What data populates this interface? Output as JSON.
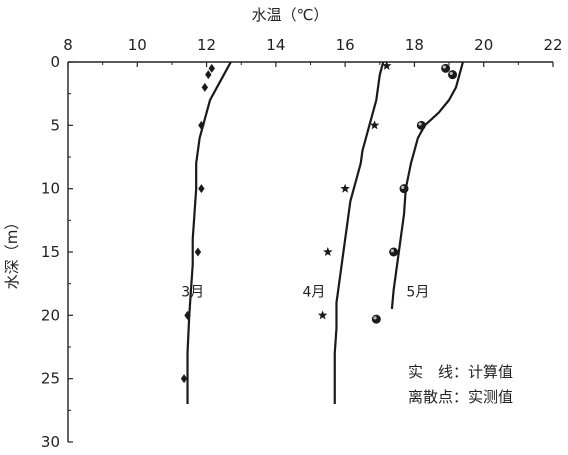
{
  "chart_data": {
    "type": "line",
    "xlabel": "水温（℃）",
    "ylabel": "水深（m）",
    "x_ticks": [
      "8",
      "10",
      "12",
      "14",
      "16",
      "18",
      "20",
      "22"
    ],
    "y_ticks": [
      "0",
      "5",
      "10",
      "15",
      "20",
      "25",
      "30"
    ],
    "xlim": [
      8,
      22
    ],
    "ylim": [
      0,
      30
    ],
    "y_inverted": true,
    "x_axis_position": "top",
    "grid": false,
    "legend": {
      "position": "bottom-right",
      "line_text": "实　线：计算值",
      "points_text": "离散点：实测值"
    },
    "series": [
      {
        "name": "3月",
        "computed": [
          [
            12.7,
            0
          ],
          [
            12.5,
            1
          ],
          [
            12.3,
            2
          ],
          [
            12.1,
            3
          ],
          [
            12.0,
            4
          ],
          [
            11.9,
            5
          ],
          [
            11.8,
            6
          ],
          [
            11.75,
            7
          ],
          [
            11.7,
            8
          ],
          [
            11.7,
            10
          ],
          [
            11.65,
            12
          ],
          [
            11.6,
            14
          ],
          [
            11.6,
            16
          ],
          [
            11.55,
            18
          ],
          [
            11.5,
            20
          ],
          [
            11.45,
            23
          ],
          [
            11.45,
            27
          ]
        ],
        "measured": [
          [
            12.15,
            0.5
          ],
          [
            12.05,
            1
          ],
          [
            11.95,
            2
          ],
          [
            11.85,
            5
          ],
          [
            11.85,
            10
          ],
          [
            11.75,
            15
          ],
          [
            11.45,
            20
          ],
          [
            11.35,
            25
          ]
        ],
        "marker": "diamond",
        "label_value": [
          11.6,
          18.5
        ]
      },
      {
        "name": "4月",
        "computed": [
          [
            17.1,
            0
          ],
          [
            17.0,
            1
          ],
          [
            16.95,
            2
          ],
          [
            16.9,
            3
          ],
          [
            16.8,
            4
          ],
          [
            16.7,
            5
          ],
          [
            16.6,
            6
          ],
          [
            16.5,
            7
          ],
          [
            16.45,
            8
          ],
          [
            16.35,
            9
          ],
          [
            16.25,
            10
          ],
          [
            16.15,
            11
          ],
          [
            16.1,
            12
          ],
          [
            16.05,
            13
          ],
          [
            16.0,
            14
          ],
          [
            15.95,
            15
          ],
          [
            15.9,
            16
          ],
          [
            15.85,
            17
          ],
          [
            15.8,
            18
          ],
          [
            15.75,
            19
          ],
          [
            15.75,
            21
          ],
          [
            15.7,
            23
          ],
          [
            15.7,
            27
          ]
        ],
        "measured": [
          [
            17.2,
            0.3
          ],
          [
            16.85,
            5
          ],
          [
            16.0,
            10
          ],
          [
            15.5,
            15
          ],
          [
            15.35,
            20
          ]
        ],
        "marker": "star",
        "label_value": [
          15.1,
          18.5
        ]
      },
      {
        "name": "5月",
        "computed": [
          [
            19.4,
            0
          ],
          [
            19.3,
            1
          ],
          [
            19.2,
            2
          ],
          [
            19.0,
            3
          ],
          [
            18.7,
            4
          ],
          [
            18.3,
            5
          ],
          [
            18.1,
            6
          ],
          [
            18.0,
            7
          ],
          [
            17.9,
            8
          ],
          [
            17.75,
            10
          ],
          [
            17.7,
            12
          ],
          [
            17.6,
            14
          ],
          [
            17.5,
            16
          ],
          [
            17.4,
            18
          ],
          [
            17.35,
            19.5
          ]
        ],
        "measured": [
          [
            18.9,
            0.5
          ],
          [
            19.1,
            1
          ],
          [
            18.2,
            5
          ],
          [
            17.7,
            10
          ],
          [
            17.4,
            15
          ],
          [
            16.9,
            20.3
          ]
        ],
        "marker": "circle",
        "label_value": [
          18.1,
          18.5
        ]
      }
    ]
  }
}
